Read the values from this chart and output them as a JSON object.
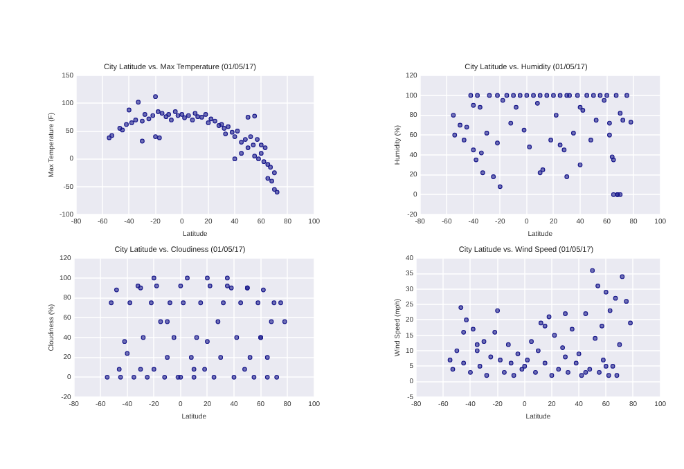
{
  "chart_data": [
    {
      "type": "scatter",
      "title": "City Latitude vs. Max Temperature (01/05/17)",
      "xlabel": "Latitude",
      "ylabel": "Max Temperature (F)",
      "color": "#1a1a8c",
      "marker": "circle",
      "grid": true,
      "xlim": [
        -80,
        100
      ],
      "xticks": [
        -80,
        -60,
        -40,
        -20,
        0,
        20,
        40,
        60,
        80,
        100
      ],
      "ylim": [
        -100,
        150
      ],
      "yticks": [
        -100,
        -50,
        0,
        50,
        100,
        150
      ],
      "x": [
        -55,
        -53,
        -47,
        -45,
        -42,
        -40,
        -38,
        -35,
        -33,
        -30,
        -28,
        -25,
        -22,
        -20,
        -20,
        -18,
        -15,
        -12,
        -10,
        -8,
        -5,
        -3,
        0,
        2,
        5,
        8,
        10,
        12,
        15,
        18,
        20,
        22,
        25,
        28,
        30,
        32,
        35,
        38,
        40,
        42,
        45,
        48,
        50,
        52,
        54,
        55,
        57,
        58,
        60,
        62,
        63,
        65,
        65,
        67,
        68,
        70,
        70,
        72,
        45,
        55,
        -30,
        -17,
        33,
        40,
        50,
        60
      ],
      "values": [
        38,
        42,
        55,
        52,
        62,
        88,
        65,
        70,
        102,
        68,
        80,
        72,
        78,
        112,
        40,
        85,
        82,
        76,
        80,
        70,
        85,
        78,
        80,
        74,
        78,
        70,
        82,
        76,
        75,
        80,
        65,
        72,
        68,
        60,
        62,
        55,
        58,
        48,
        40,
        50,
        30,
        35,
        20,
        40,
        25,
        5,
        35,
        0,
        10,
        -5,
        20,
        -10,
        -35,
        -15,
        -40,
        -25,
        -55,
        -60,
        10,
        77,
        32,
        38,
        45,
        0,
        75,
        25
      ]
    },
    {
      "type": "scatter",
      "title": "City Latitude vs. Humidity (01/05/17)",
      "xlabel": "Latitude",
      "ylabel": "Humidity (%)",
      "color": "#1a1a8c",
      "marker": "circle",
      "grid": true,
      "xlim": [
        -80,
        100
      ],
      "xticks": [
        -80,
        -60,
        -40,
        -20,
        0,
        20,
        40,
        60,
        80,
        100
      ],
      "ylim": [
        -20,
        120
      ],
      "yticks": [
        -20,
        0,
        20,
        40,
        60,
        80,
        100,
        120
      ],
      "x": [
        -55,
        -54,
        -50,
        -47,
        -45,
        -42,
        -40,
        -38,
        -37,
        -35,
        -33,
        -30,
        -28,
        -25,
        -22,
        -20,
        -18,
        -15,
        -12,
        -10,
        -8,
        -5,
        -2,
        0,
        2,
        5,
        8,
        10,
        12,
        15,
        18,
        20,
        22,
        25,
        28,
        30,
        32,
        35,
        38,
        40,
        42,
        45,
        48,
        50,
        52,
        55,
        58,
        60,
        62,
        64,
        65,
        67,
        68,
        70,
        72,
        75,
        78,
        -40,
        -34,
        -22,
        30,
        40,
        62,
        65,
        68,
        70,
        25,
        10
      ],
      "values": [
        80,
        60,
        70,
        55,
        68,
        100,
        45,
        35,
        100,
        88,
        22,
        62,
        100,
        18,
        100,
        8,
        95,
        100,
        72,
        100,
        88,
        100,
        65,
        100,
        48,
        100,
        92,
        100,
        25,
        100,
        55,
        100,
        80,
        100,
        45,
        18,
        100,
        62,
        100,
        30,
        85,
        100,
        55,
        100,
        75,
        100,
        95,
        100,
        72,
        38,
        0,
        100,
        0,
        0,
        75,
        100,
        73,
        90,
        42,
        52,
        100,
        88,
        60,
        35,
        0,
        82,
        50,
        22
      ]
    },
    {
      "type": "scatter",
      "title": "City Latitude vs. Cloudiness (01/05/17)",
      "xlabel": "Latitude",
      "ylabel": "Cloudiness (%)",
      "color": "#1a1a8c",
      "marker": "circle",
      "grid": true,
      "xlim": [
        -80,
        100
      ],
      "xticks": [
        -80,
        -60,
        -40,
        -20,
        0,
        20,
        40,
        60,
        80,
        100
      ],
      "ylim": [
        -20,
        120
      ],
      "yticks": [
        -20,
        0,
        20,
        40,
        60,
        80,
        100,
        120
      ],
      "x": [
        -55,
        -52,
        -48,
        -46,
        -45,
        -42,
        -40,
        -38,
        -35,
        -32,
        -30,
        -28,
        -25,
        -22,
        -20,
        -18,
        -15,
        -12,
        -10,
        -8,
        -5,
        -2,
        0,
        2,
        5,
        8,
        10,
        12,
        15,
        18,
        20,
        22,
        25,
        28,
        30,
        32,
        35,
        38,
        40,
        42,
        45,
        48,
        50,
        52,
        55,
        58,
        60,
        62,
        65,
        68,
        70,
        72,
        75,
        78,
        -20,
        20,
        35,
        -30,
        0,
        50,
        60,
        65,
        -10,
        10
      ],
      "values": [
        0,
        75,
        88,
        8,
        0,
        36,
        24,
        75,
        0,
        92,
        8,
        40,
        0,
        75,
        100,
        92,
        56,
        0,
        20,
        75,
        40,
        0,
        92,
        75,
        100,
        20,
        0,
        40,
        75,
        8,
        100,
        92,
        0,
        56,
        20,
        75,
        100,
        90,
        0,
        40,
        75,
        8,
        90,
        20,
        0,
        75,
        40,
        88,
        0,
        56,
        75,
        0,
        75,
        56,
        8,
        36,
        92,
        90,
        0,
        90,
        40,
        20,
        56,
        8
      ]
    },
    {
      "type": "scatter",
      "title": "City Latitude vs. Wind Speed (01/05/17)",
      "xlabel": "Latitude",
      "ylabel": "Wind Speed (mph)",
      "color": "#1a1a8c",
      "marker": "circle",
      "grid": true,
      "xlim": [
        -80,
        100
      ],
      "xticks": [
        -80,
        -60,
        -40,
        -20,
        0,
        20,
        40,
        60,
        80,
        100
      ],
      "ylim": [
        -5,
        40
      ],
      "yticks": [
        -5,
        0,
        5,
        10,
        15,
        20,
        25,
        30,
        35,
        40
      ],
      "x": [
        -55,
        -53,
        -50,
        -47,
        -45,
        -43,
        -40,
        -38,
        -35,
        -33,
        -30,
        -28,
        -25,
        -22,
        -20,
        -18,
        -15,
        -12,
        -10,
        -8,
        -5,
        -2,
        0,
        2,
        5,
        8,
        10,
        12,
        15,
        18,
        20,
        22,
        25,
        28,
        30,
        32,
        35,
        38,
        40,
        42,
        45,
        48,
        50,
        52,
        54,
        55,
        57,
        58,
        60,
        62,
        63,
        65,
        67,
        68,
        70,
        72,
        75,
        78,
        -45,
        -35,
        15,
        30,
        45,
        60
      ],
      "values": [
        7,
        4,
        10,
        24,
        6,
        20,
        3,
        17,
        10,
        5,
        13,
        2,
        8,
        16,
        23,
        7,
        3,
        12,
        6,
        2,
        9,
        4,
        5,
        7,
        13,
        3,
        10,
        19,
        6,
        21,
        2,
        15,
        4,
        11,
        22,
        3,
        17,
        6,
        9,
        2,
        22,
        4,
        36,
        14,
        31,
        3,
        18,
        7,
        29,
        2,
        23,
        5,
        27,
        2,
        12,
        34,
        26,
        19,
        16,
        12,
        18,
        8,
        3,
        5
      ]
    }
  ]
}
